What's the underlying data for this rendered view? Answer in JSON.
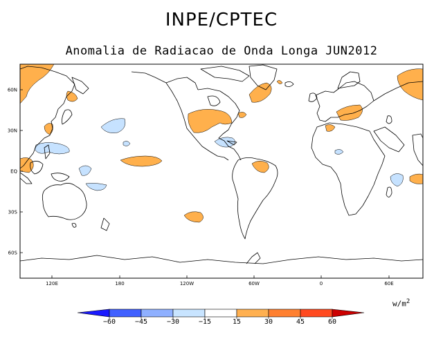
{
  "header": {
    "title": "INPE/CPTEC",
    "subtitle": "Anomalia de Radiacao de Onda Longa JUN2012"
  },
  "map": {
    "lat_labels": [
      "60N",
      "30N",
      "EQ",
      "30S",
      "60S"
    ],
    "lon_labels": [
      "120E",
      "180",
      "120W",
      "60W",
      "0",
      "60E"
    ]
  },
  "colorbar": {
    "units": "w/m",
    "units_power": "2",
    "labels": [
      "−60",
      "−45",
      "−30",
      "−15",
      "15",
      "30",
      "45",
      "60"
    ],
    "colors": [
      "#1a1aff",
      "#4060ff",
      "#8fb0ff",
      "#c8e4ff",
      "#ffffff",
      "#ffb050",
      "#ff8030",
      "#ff4a20",
      "#cc0000"
    ]
  },
  "palette": {
    "positive_anomaly": "#ffb04c",
    "negative_anomaly": "#c6e2ff"
  }
}
